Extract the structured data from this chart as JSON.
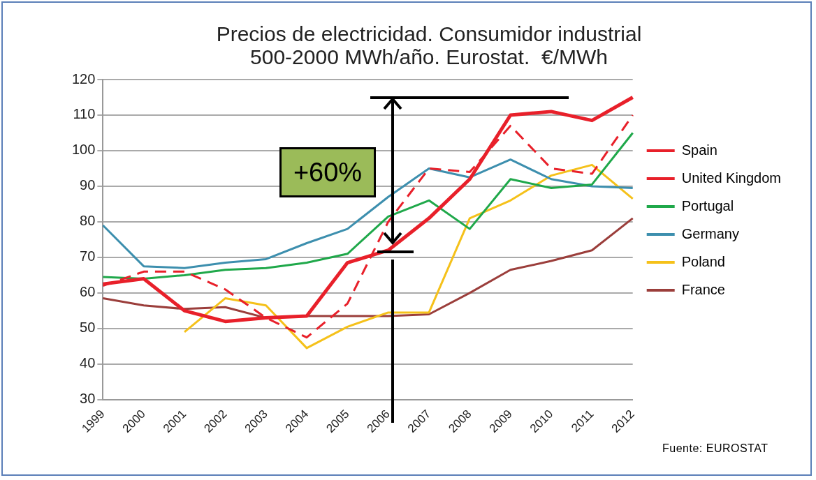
{
  "chart_data": {
    "type": "line",
    "title": "Precios de electricidad. Consumidor industrial\n500-2000 MWh/año. Eurostat.  €/MWh",
    "categories": [
      "1999",
      "2000",
      "2001",
      "2002",
      "2003",
      "2004",
      "2005",
      "2006",
      "2007",
      "2008",
      "2009",
      "2010",
      "2011",
      "2012"
    ],
    "series": [
      {
        "name": "Spain",
        "color": "#e8202a",
        "values": [
          62.5,
          64,
          55,
          52,
          53,
          53.5,
          68.5,
          72,
          81,
          92,
          110,
          111,
          108.5,
          115
        ]
      },
      {
        "name": "United Kingdom",
        "color": "#e8202a",
        "line_style": "dashed",
        "values": [
          62,
          66,
          66,
          61,
          53,
          47.5,
          57,
          80,
          95,
          94,
          107,
          95,
          93.5,
          110
        ]
      },
      {
        "name": "Portugal",
        "color": "#1fa84a",
        "values": [
          64.5,
          64,
          65,
          66.5,
          67,
          68.5,
          71,
          81.5,
          86,
          78,
          92,
          89.5,
          90.5,
          105
        ]
      },
      {
        "name": "Germany",
        "color": "#3d8fae",
        "values": [
          79,
          67.5,
          67,
          68.5,
          69.5,
          74,
          78,
          87,
          95,
          92.5,
          97.5,
          92,
          90,
          89.5
        ]
      },
      {
        "name": "Poland",
        "color": "#f5c11a",
        "values": [
          null,
          null,
          49,
          58.5,
          56.5,
          44.5,
          50.5,
          54.5,
          54.5,
          81,
          86,
          93,
          96,
          86.5
        ]
      },
      {
        "name": "France",
        "color": "#9b3e3b",
        "values": [
          58.5,
          56.5,
          55.5,
          56,
          53,
          53.5,
          53.5,
          53.5,
          54,
          60,
          66.5,
          69,
          72,
          81
        ]
      }
    ],
    "ylim": [
      30,
      120
    ],
    "yticks": [
      30,
      40,
      50,
      60,
      70,
      80,
      90,
      100,
      110,
      120
    ],
    "grid": "y",
    "legend": "right",
    "marker": "none",
    "line_style": "solid",
    "annotations": [
      "+60%",
      "Fuente: EUROSTAT"
    ]
  }
}
